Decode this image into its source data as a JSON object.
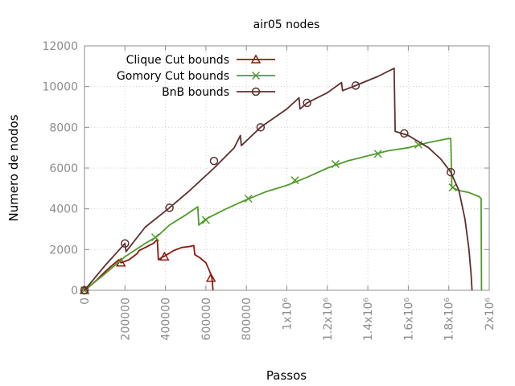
{
  "chart_data": {
    "type": "line",
    "title": "air05 nodes",
    "xlabel": "Passos",
    "ylabel": "Numero de nodos",
    "xlim": [
      0,
      2000000
    ],
    "ylim": [
      0,
      12000
    ],
    "grid": true,
    "legend_position": "top-left",
    "x_tick_labels": [
      "0",
      "200000",
      "400000",
      "600000",
      "800000",
      "1x10⁶",
      "1.2x10⁶",
      "1.4x10⁶",
      "1.6x10⁶",
      "1.8x10⁶",
      "2x10⁶"
    ],
    "x_ticks": [
      0,
      200000,
      400000,
      600000,
      800000,
      1000000,
      1200000,
      1400000,
      1600000,
      1800000,
      2000000
    ],
    "y_tick_labels": [
      "0",
      "2000",
      "4000",
      "6000",
      "8000",
      "10000",
      "12000"
    ],
    "y_ticks": [
      0,
      2000,
      4000,
      6000,
      8000,
      10000,
      12000
    ],
    "series": [
      {
        "name": "Clique Cut bounds",
        "color": "#8b1a0e",
        "marker": "triangle",
        "points": [
          [
            0,
            0
          ],
          [
            20000,
            150
          ],
          [
            60000,
            500
          ],
          [
            100000,
            900
          ],
          [
            140000,
            1250
          ],
          [
            170000,
            1500
          ],
          [
            180000,
            1350
          ],
          [
            220000,
            1500
          ],
          [
            260000,
            1800
          ],
          [
            270000,
            1950
          ],
          [
            300000,
            2100
          ],
          [
            340000,
            2300
          ],
          [
            360000,
            2500
          ],
          [
            365000,
            1500
          ],
          [
            380000,
            1600
          ],
          [
            400000,
            1700
          ],
          [
            440000,
            1950
          ],
          [
            480000,
            2100
          ],
          [
            520000,
            2150
          ],
          [
            540000,
            2200
          ],
          [
            545000,
            1750
          ],
          [
            570000,
            1600
          ],
          [
            600000,
            1350
          ],
          [
            620000,
            900
          ],
          [
            630000,
            600
          ],
          [
            635000,
            0
          ]
        ],
        "markers": [
          [
            0,
            0
          ],
          [
            180000,
            1350
          ],
          [
            395000,
            1650
          ],
          [
            625000,
            600
          ]
        ]
      },
      {
        "name": "Gomory Cut bounds",
        "color": "#4f9c2b",
        "marker": "x",
        "points": [
          [
            0,
            0
          ],
          [
            100000,
            800
          ],
          [
            200000,
            1650
          ],
          [
            300000,
            2300
          ],
          [
            360000,
            2650
          ],
          [
            420000,
            3200
          ],
          [
            500000,
            3700
          ],
          [
            560000,
            4100
          ],
          [
            565000,
            3200
          ],
          [
            600000,
            3500
          ],
          [
            700000,
            4000
          ],
          [
            800000,
            4450
          ],
          [
            900000,
            4850
          ],
          [
            1000000,
            5150
          ],
          [
            1100000,
            5550
          ],
          [
            1200000,
            6000
          ],
          [
            1300000,
            6350
          ],
          [
            1400000,
            6600
          ],
          [
            1500000,
            6850
          ],
          [
            1600000,
            7000
          ],
          [
            1700000,
            7250
          ],
          [
            1800000,
            7450
          ],
          [
            1810000,
            7450
          ],
          [
            1815000,
            5050
          ],
          [
            1850000,
            4900
          ],
          [
            1900000,
            4800
          ],
          [
            1950000,
            4600
          ],
          [
            1960000,
            4500
          ],
          [
            1962000,
            0
          ]
        ],
        "markers": [
          [
            0,
            0
          ],
          [
            350000,
            2600
          ],
          [
            600000,
            3450
          ],
          [
            810000,
            4500
          ],
          [
            1040000,
            5400
          ],
          [
            1240000,
            6200
          ],
          [
            1450000,
            6700
          ],
          [
            1650000,
            7150
          ],
          [
            1820000,
            5050
          ]
        ]
      },
      {
        "name": "BnB bounds",
        "color": "#5e2f2f",
        "marker": "circle",
        "points": [
          [
            0,
            0
          ],
          [
            100000,
            1200
          ],
          [
            200000,
            2300
          ],
          [
            205000,
            1900
          ],
          [
            300000,
            3100
          ],
          [
            420000,
            4050
          ],
          [
            520000,
            4900
          ],
          [
            640000,
            6000
          ],
          [
            740000,
            7000
          ],
          [
            770000,
            7600
          ],
          [
            775000,
            7100
          ],
          [
            870000,
            8000
          ],
          [
            1000000,
            8900
          ],
          [
            1060000,
            9450
          ],
          [
            1065000,
            8900
          ],
          [
            1100000,
            9200
          ],
          [
            1200000,
            9700
          ],
          [
            1270000,
            10200
          ],
          [
            1275000,
            9800
          ],
          [
            1340000,
            10050
          ],
          [
            1450000,
            10500
          ],
          [
            1530000,
            10900
          ],
          [
            1535000,
            7800
          ],
          [
            1600000,
            7600
          ],
          [
            1700000,
            7000
          ],
          [
            1760000,
            6450
          ],
          [
            1810000,
            5800
          ],
          [
            1850000,
            4900
          ],
          [
            1880000,
            3500
          ],
          [
            1900000,
            2000
          ],
          [
            1910000,
            800
          ],
          [
            1915000,
            0
          ]
        ],
        "markers": [
          [
            0,
            0
          ],
          [
            200000,
            2300
          ],
          [
            420000,
            4050
          ],
          [
            640000,
            6350
          ],
          [
            870000,
            8000
          ],
          [
            1100000,
            9200
          ],
          [
            1340000,
            10050
          ],
          [
            1580000,
            7700
          ],
          [
            1810000,
            5800
          ]
        ]
      }
    ]
  }
}
